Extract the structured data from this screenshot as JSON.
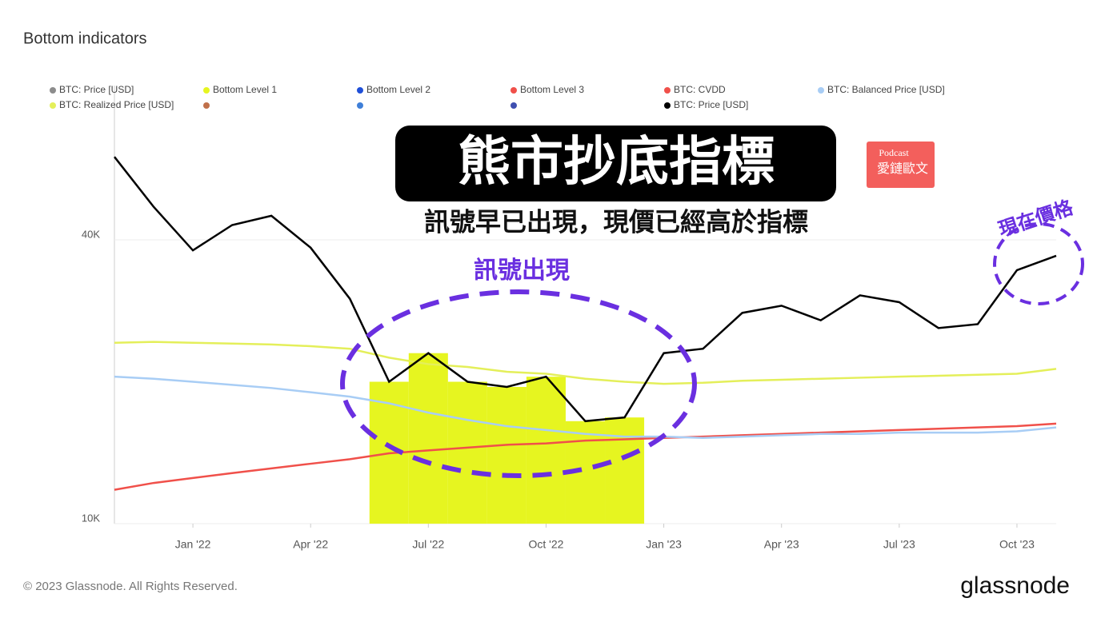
{
  "chart_data": {
    "type": "line",
    "title": "Bottom indicators",
    "x": [
      "Nov '21",
      "Dec '21",
      "Jan '22",
      "Feb '22",
      "Mar '22",
      "Apr '22",
      "May '22",
      "Jun '22",
      "Jul '22",
      "Aug '22",
      "Sep '22",
      "Oct '22",
      "Nov '22",
      "Dec '22",
      "Jan '23",
      "Feb '23",
      "Mar '23",
      "Apr '23",
      "May '23",
      "Jun '23",
      "Jul '23",
      "Aug '23",
      "Sep '23",
      "Oct '23",
      "Nov '23"
    ],
    "xticks": [
      "Jan '22",
      "Apr '22",
      "Jul '22",
      "Oct '22",
      "Jan '23",
      "Apr '23",
      "Jul '23",
      "Oct '23"
    ],
    "log_scale": true,
    "ylim": [
      10000,
      85000
    ],
    "yticks": [
      {
        "value": 10000,
        "label": "10K"
      },
      {
        "value": 40000,
        "label": "40K"
      }
    ],
    "series": [
      {
        "name": "Bottom Level 1",
        "color": "#e6f520",
        "style": "bars",
        "values": [
          null,
          null,
          null,
          null,
          null,
          null,
          null,
          20000,
          23000,
          20000,
          19500,
          20500,
          16500,
          16800,
          null,
          null,
          null,
          null,
          null,
          null,
          null,
          null,
          null,
          null,
          null
        ]
      },
      {
        "name": "BTC: CVDD",
        "color": "#f0504a",
        "values": [
          11800,
          12200,
          12500,
          12800,
          13100,
          13400,
          13700,
          14100,
          14300,
          14500,
          14700,
          14800,
          15000,
          15100,
          15200,
          15300,
          15400,
          15500,
          15600,
          15700,
          15800,
          15900,
          16000,
          16100,
          16300
        ]
      },
      {
        "name": "BTC: Balanced Price [USD]",
        "color": "#a8cdf5",
        "values": [
          20500,
          20300,
          20000,
          19700,
          19400,
          19000,
          18600,
          18000,
          17200,
          16600,
          16100,
          15800,
          15500,
          15300,
          15300,
          15200,
          15300,
          15400,
          15500,
          15500,
          15600,
          15600,
          15600,
          15700,
          16000
        ]
      },
      {
        "name": "BTC: Realized Price [USD]",
        "color": "#e4ef5a",
        "values": [
          24200,
          24300,
          24200,
          24100,
          24000,
          23800,
          23500,
          22500,
          21800,
          21500,
          21000,
          20800,
          20300,
          20000,
          19800,
          19900,
          20100,
          20200,
          20300,
          20400,
          20500,
          20600,
          20700,
          20800,
          21300
        ]
      },
      {
        "name": "BTC: Price [USD]",
        "color": "#000000",
        "values": [
          60000,
          47000,
          38000,
          43000,
          45000,
          38500,
          30000,
          20000,
          23000,
          20000,
          19500,
          20500,
          16500,
          16800,
          23000,
          23500,
          28000,
          29000,
          27000,
          30500,
          29500,
          26000,
          26500,
          34500,
          37000
        ]
      }
    ],
    "legend_extra": [
      {
        "name": "BTC: Price [USD]",
        "color": "#8c8c8c"
      },
      {
        "name": "Bottom Level 2",
        "color": "#1f4fd8"
      },
      {
        "name": "Bottom Level 3",
        "color": "#f0504a"
      },
      {
        "name": null,
        "color": "#c0704a"
      },
      {
        "name": null,
        "color": "#3f7fd8"
      },
      {
        "name": null,
        "color": "#3f4fb0"
      }
    ],
    "annotations": {
      "headline": "熊市抄底指標",
      "subheadline": "訊號早已出現，現價已經高於指標",
      "signal": "訊號出現",
      "current": "現在價格",
      "badge_top": "Podcast",
      "badge_main": "愛鏈歐文"
    },
    "footer": "© 2023 Glassnode. All Rights Reserved.",
    "brand": "glassnode"
  }
}
